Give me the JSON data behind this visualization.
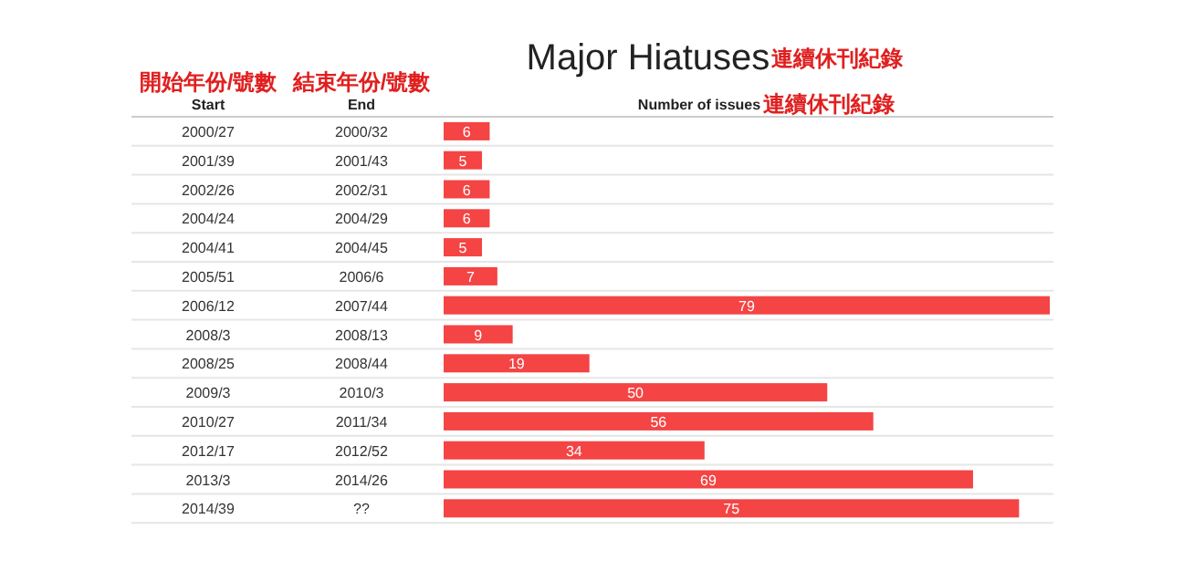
{
  "chart_data": {
    "type": "bar",
    "orientation": "horizontal",
    "title": "Major Hiatuses",
    "xlabel": "Number of issues",
    "ylabel": "Start",
    "y2label": "End",
    "categories": [
      "2000/27",
      "2001/39",
      "2002/26",
      "2004/24",
      "2004/41",
      "2005/51",
      "2006/12",
      "2008/3",
      "2008/25",
      "2009/3",
      "2010/27",
      "2012/17",
      "2013/3",
      "2014/39"
    ],
    "y2_categories": [
      "2000/32",
      "2001/43",
      "2002/31",
      "2004/29",
      "2004/45",
      "2006/6",
      "2007/44",
      "2008/13",
      "2008/44",
      "2010/3",
      "2011/34",
      "2012/52",
      "2014/26",
      "??"
    ],
    "values": [
      6,
      5,
      6,
      6,
      5,
      7,
      79,
      9,
      19,
      50,
      56,
      34,
      69,
      75
    ],
    "color": "#f44444",
    "data_labels": true,
    "annotations": [
      "開始年份/號數",
      "結束年份/號數",
      "連續休刊紀錄",
      "連續休刊紀錄"
    ]
  }
}
